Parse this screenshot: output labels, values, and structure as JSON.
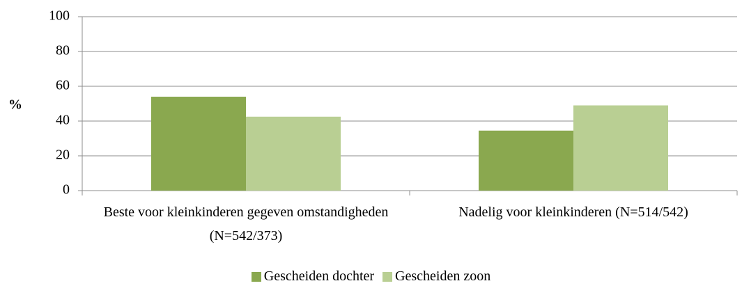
{
  "chart_data": {
    "type": "bar",
    "y_label": "%",
    "categories": [
      "Beste voor kleinkinderen gegeven omstandigheden (N=542/373)",
      "Nadelig voor kleinkinderen (N=514/542)"
    ],
    "series": [
      {
        "name": "Gescheiden dochter",
        "color": "#8aa84f",
        "values": [
          54,
          34.5
        ]
      },
      {
        "name": "Gescheiden zoon",
        "color": "#b9cf93",
        "values": [
          42.5,
          49
        ]
      }
    ],
    "ylim": [
      0,
      100
    ],
    "yticks": [
      0,
      20,
      40,
      60,
      80,
      100
    ],
    "grid": true,
    "legend": "bottom"
  }
}
